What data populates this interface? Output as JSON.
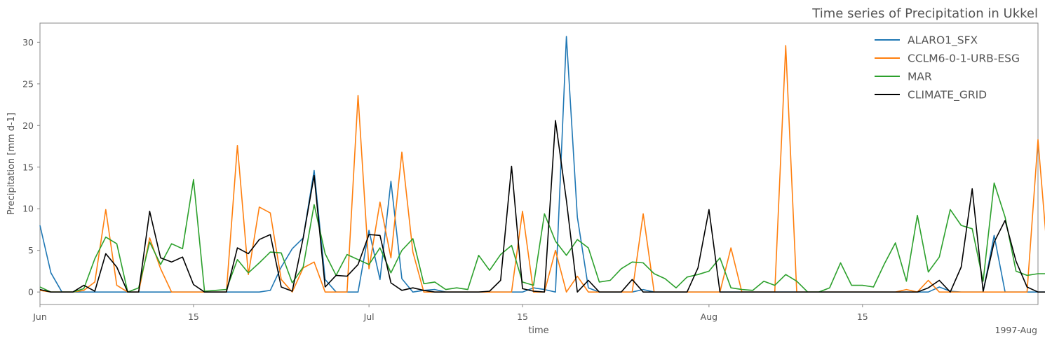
{
  "chart_data": {
    "type": "line",
    "title": "Time series of Precipitation in Ukkel",
    "xlabel": "time",
    "ylabel": "Precipitation [mm d-1]",
    "x_start": "1997-06-01",
    "x_end": "1997-08-31",
    "x_ticks": [
      {
        "date": "1997-06-01",
        "label": "Jun"
      },
      {
        "date": "1997-06-15",
        "label": "15"
      },
      {
        "date": "1997-07-01",
        "label": "Jul"
      },
      {
        "date": "1997-07-15",
        "label": "15"
      },
      {
        "date": "1997-08-01",
        "label": "Aug"
      },
      {
        "date": "1997-08-15",
        "label": "15"
      }
    ],
    "x_offset_label": "1997-Aug",
    "ylim": [
      -1.5,
      32.3
    ],
    "y_ticks": [
      0,
      5,
      10,
      15,
      20,
      25,
      30
    ],
    "legend_position": "top-right",
    "grid": false,
    "series": [
      {
        "name": "ALARO1_SFX",
        "color": "#1f77b4",
        "values": [
          8.0,
          2.3,
          0,
          0,
          0,
          0,
          0,
          0,
          0,
          0,
          0,
          0,
          0,
          0,
          0,
          0,
          0,
          0,
          0,
          0,
          0,
          0.2,
          3.0,
          5.2,
          6.5,
          14.6,
          1.5,
          0,
          0,
          0,
          7.4,
          1.5,
          13.3,
          1.6,
          0,
          0.2,
          0.3,
          0,
          0,
          0,
          0,
          0,
          0,
          0,
          0,
          0.5,
          0.3,
          0,
          30.7,
          9.0,
          0.5,
          0,
          0,
          0,
          0,
          0.3,
          0,
          0,
          0,
          0,
          0,
          0,
          0,
          0,
          0,
          0,
          0,
          0,
          0,
          0,
          0,
          0,
          0,
          0,
          0,
          0,
          0,
          0,
          0,
          0,
          0,
          0,
          0.6,
          0.1,
          0,
          0,
          0,
          6.8,
          0,
          0,
          0,
          0,
          0,
          0
        ]
      },
      {
        "name": "CCLM6-0-1-URB-ESG",
        "color": "#ff7f0e",
        "values": [
          0.2,
          0,
          0,
          0,
          0.2,
          1.2,
          9.9,
          0.8,
          0,
          0,
          6.5,
          2.8,
          0,
          0,
          0,
          0,
          0,
          0,
          17.6,
          2.1,
          10.2,
          9.5,
          1.5,
          0,
          2.9,
          3.6,
          0,
          0,
          0,
          23.6,
          2.8,
          10.8,
          4.1,
          16.8,
          4.8,
          0,
          0,
          0,
          0,
          0,
          0,
          0,
          0,
          0,
          9.7,
          0,
          0,
          5.0,
          0,
          1.9,
          0,
          0,
          0,
          0,
          0,
          9.4,
          0,
          0,
          0,
          0,
          0,
          0,
          0,
          5.3,
          0,
          0,
          0,
          0,
          29.6,
          0,
          0,
          0,
          0,
          0,
          0,
          0,
          0,
          0,
          0,
          0.3,
          0,
          1.4,
          0,
          0,
          0,
          0,
          0,
          0,
          0,
          0,
          0,
          18.3,
          2.4,
          2.3,
          0
        ]
      },
      {
        "name": "MAR",
        "color": "#2ca02c",
        "values": [
          0.6,
          0,
          0,
          0,
          0.4,
          4.0,
          6.6,
          5.8,
          0,
          0.5,
          6.0,
          3.3,
          5.8,
          5.2,
          13.5,
          0.1,
          0.2,
          0.3,
          3.9,
          2.3,
          3.5,
          4.8,
          4.7,
          1.1,
          3.0,
          10.5,
          4.6,
          2.0,
          4.5,
          3.9,
          3.3,
          5.3,
          2.3,
          5.0,
          6.4,
          1.0,
          1.2,
          0.3,
          0.5,
          0.3,
          4.4,
          2.6,
          4.5,
          5.6,
          1.2,
          0.8,
          9.4,
          6.1,
          4.4,
          6.3,
          5.3,
          1.2,
          1.4,
          2.8,
          3.6,
          3.5,
          2.2,
          1.6,
          0.5,
          1.8,
          2.1,
          2.5,
          4.1,
          0.5,
          0.3,
          0.2,
          1.3,
          0.8,
          2.1,
          1.3,
          0,
          0,
          0.5,
          3.5,
          0.8,
          0.8,
          0.6,
          3.4,
          5.9,
          1.3,
          9.2,
          2.4,
          4.2,
          9.9,
          8.0,
          7.6,
          1.3,
          13.1,
          9.0,
          2.5,
          2.0,
          2.2,
          2.2
        ]
      },
      {
        "name": "CLIMATE_GRID",
        "color": "#000000",
        "values": [
          0.3,
          0,
          0,
          0,
          0.8,
          0.1,
          4.6,
          3.0,
          0,
          0,
          9.7,
          4.1,
          3.6,
          4.2,
          0.9,
          0,
          0,
          0,
          5.3,
          4.6,
          6.3,
          6.9,
          0.6,
          0.1,
          6.5,
          14.0,
          0.6,
          2.0,
          1.9,
          3.3,
          6.9,
          6.8,
          1.1,
          0.2,
          0.5,
          0.2,
          0,
          0,
          0,
          0,
          0,
          0.1,
          1.4,
          15.1,
          0.4,
          0.1,
          0,
          20.6,
          11.0,
          0,
          1.4,
          0,
          0,
          0,
          1.5,
          0,
          0,
          0,
          0,
          0,
          2.9,
          9.9,
          0,
          0,
          0,
          0,
          0,
          0,
          0,
          0,
          0,
          0,
          0,
          0,
          0,
          0,
          0,
          0,
          0,
          0,
          0,
          0.5,
          1.4,
          0,
          3.0,
          12.4,
          0.1,
          6.0,
          8.6,
          3.7,
          0.6,
          0,
          0
        ]
      }
    ]
  }
}
